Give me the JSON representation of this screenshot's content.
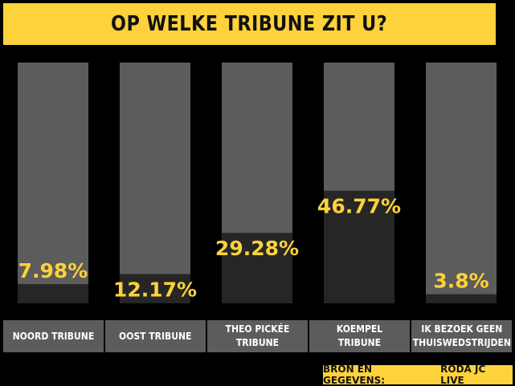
{
  "colors": {
    "background": "#000000",
    "accent": "#fdd23a",
    "bar_track": "#5c5c5c",
    "bar_fill": "#262626",
    "label_cell": "#5c5c5c",
    "value_text": "#fdd23a"
  },
  "footer": {
    "source_label": "BRON EN GEGEVENS:",
    "source_name": "RODA JC LIVE"
  },
  "chart_data": {
    "type": "bar",
    "title": "OP WELKE TRIBUNE ZIT U?",
    "categories": [
      "NOORD TRIBUNE",
      "OOST TRIBUNE",
      "THEO PICKÉE TRIBUNE",
      "KOEMPEL TRIBUNE",
      "IK BEZOEK GEEN THUISWEDSTRIJDEN"
    ],
    "values": [
      7.98,
      12.17,
      29.28,
      46.77,
      3.8
    ],
    "value_labels": [
      "7.98%",
      "12.17%",
      "29.28%",
      "46.77%",
      "3.8%"
    ],
    "unit": "%",
    "ylim": [
      0,
      100
    ],
    "grid": false,
    "legend": "none"
  }
}
